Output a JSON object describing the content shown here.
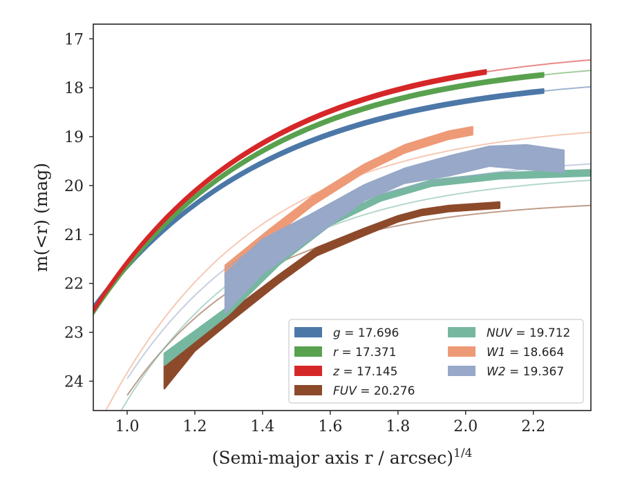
{
  "chart_data": {
    "type": "line",
    "xlabel": "(Semi-major axis r / arcsec)",
    "xlabel_exponent": "1/4",
    "ylabel": "m(<r) (mag)",
    "xlim": [
      0.9,
      2.37
    ],
    "ylim": [
      24.6,
      16.7
    ],
    "y_inverted": true,
    "x_ticks": [
      1.0,
      1.2,
      1.4,
      1.6,
      1.8,
      2.0,
      2.2
    ],
    "x_tick_labels": [
      "1.0",
      "1.2",
      "1.4",
      "1.6",
      "1.8",
      "2.0",
      "2.2"
    ],
    "y_ticks": [
      17,
      18,
      19,
      20,
      21,
      22,
      23,
      24
    ],
    "y_tick_labels": [
      "17",
      "18",
      "19",
      "20",
      "21",
      "22",
      "23",
      "24"
    ],
    "legend_position": "lower-right",
    "series": [
      {
        "name": "g",
        "label_prefix": "g",
        "label_value": "= 17.696",
        "color": "#4c78a8",
        "model": {
          "asymptote": 17.696,
          "amp": 6.4,
          "scale": 0.52,
          "x0": 0.9,
          "x1": 2.37
        },
        "data": {
          "x0": 0.9,
          "x1": 2.23,
          "width": 0.04
        }
      },
      {
        "name": "r",
        "label_prefix": "r",
        "label_value": "= 17.371",
        "color": "#59a14f",
        "model": {
          "asymptote": 17.371,
          "amp": 7.05,
          "scale": 0.5,
          "x0": 0.9,
          "x1": 2.37
        },
        "data": {
          "x0": 0.9,
          "x1": 2.23,
          "width": 0.04
        }
      },
      {
        "name": "z",
        "label_prefix": "z",
        "label_value": "= 17.145",
        "color": "#d62728",
        "model": {
          "asymptote": 17.145,
          "amp": 7.3,
          "scale": 0.5,
          "x0": 0.9,
          "x1": 2.37
        },
        "data": {
          "x0": 0.9,
          "x1": 2.06,
          "width": 0.04
        }
      },
      {
        "name": "FUV",
        "label_prefix": "FUV",
        "label_value": "= 20.276",
        "color": "#8c4a2a",
        "model": {
          "asymptote": 20.276,
          "amp": 7.5,
          "scale": 0.4,
          "x0": 1.0,
          "x1": 2.37
        },
        "data_points": [
          [
            1.11,
            23.85,
            0.3
          ],
          [
            1.2,
            23.2,
            0.18
          ],
          [
            1.31,
            22.65,
            0.1
          ],
          [
            1.45,
            21.9,
            0.08
          ],
          [
            1.56,
            21.35,
            0.08
          ],
          [
            1.7,
            20.95,
            0.07
          ],
          [
            1.8,
            20.68,
            0.06
          ],
          [
            1.87,
            20.55,
            0.06
          ],
          [
            1.95,
            20.47,
            0.06
          ],
          [
            2.1,
            20.4,
            0.06
          ]
        ]
      },
      {
        "name": "NUV",
        "label_prefix": "NUV",
        "label_value": "= 19.712",
        "color": "#76b7a0",
        "model": {
          "asymptote": 19.712,
          "amp": 8.5,
          "scale": 0.42,
          "x0": 0.97,
          "x1": 2.37
        },
        "data_points": [
          [
            1.11,
            23.55,
            0.12
          ],
          [
            1.3,
            22.55,
            0.08
          ],
          [
            1.45,
            21.55,
            0.06
          ],
          [
            1.6,
            20.75,
            0.06
          ],
          [
            1.75,
            20.25,
            0.06
          ],
          [
            1.9,
            19.95,
            0.06
          ],
          [
            2.1,
            19.8,
            0.06
          ],
          [
            2.37,
            19.74,
            0.06
          ]
        ]
      },
      {
        "name": "W1",
        "label_prefix": "W1",
        "label_value": "= 18.664",
        "color": "#ee9a77",
        "model": {
          "asymptote": 18.664,
          "amp": 9.0,
          "scale": 0.45,
          "x0": 0.92,
          "x1": 2.37
        },
        "data_points": [
          [
            1.29,
            21.75,
            0.12
          ],
          [
            1.42,
            21.0,
            0.1
          ],
          [
            1.55,
            20.3,
            0.09
          ],
          [
            1.7,
            19.65,
            0.08
          ],
          [
            1.82,
            19.25,
            0.08
          ],
          [
            1.95,
            18.97,
            0.08
          ],
          [
            2.02,
            18.88,
            0.08
          ]
        ]
      },
      {
        "name": "W2",
        "label_prefix": "W2",
        "label_value": "= 19.367",
        "color": "#97a8c8",
        "model": {
          "asymptote": 19.367,
          "amp": 8.2,
          "scale": 0.43,
          "x0": 1.0,
          "x1": 2.37
        },
        "data_points": [
          [
            1.29,
            22.2,
            0.4
          ],
          [
            1.4,
            21.45,
            0.35
          ],
          [
            1.54,
            20.85,
            0.25
          ],
          [
            1.7,
            20.15,
            0.16
          ],
          [
            1.82,
            19.8,
            0.15
          ],
          [
            1.95,
            19.6,
            0.2
          ],
          [
            2.07,
            19.4,
            0.2
          ],
          [
            2.18,
            19.42,
            0.25
          ],
          [
            2.29,
            19.5,
            0.22
          ]
        ]
      }
    ]
  }
}
